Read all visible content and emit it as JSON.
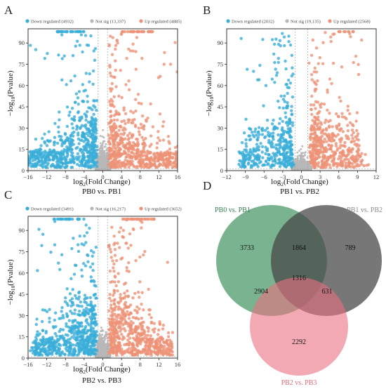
{
  "colors": {
    "down": "#3aaed8",
    "ns": "#b8b8b8",
    "up": "#ee9277",
    "venn1": "#4e9a6a",
    "venn2": "#4a4a4a",
    "venn3": "#ea6f80",
    "label1": "#2e7d4f",
    "label2": "#8a8a8a",
    "label3": "#e06a7a"
  },
  "panels": [
    {
      "letter": "A",
      "legend": {
        "down": "Down regulated (4932)",
        "ns": "Not sig (13,337)",
        "up": "Up regulated (4885)"
      },
      "xlabel_main": "log",
      "xlabel_sub": "2",
      "xlabel_rest": "(Fold Change)",
      "ylabel_pre": "−log",
      "ylabel_sub": "10",
      "ylabel_rest": "(Pvalue)",
      "comparison": "PB0 vs. PB1",
      "xticks": [
        "−16",
        "−12",
        "−8",
        "−4",
        "0",
        "4",
        "8",
        "12",
        "16"
      ],
      "yticks": [
        "0",
        "15",
        "30",
        "45",
        "60",
        "75",
        "90"
      ]
    },
    {
      "letter": "B",
      "legend": {
        "down": "Down regulated (2032)",
        "ns": "Not sig (19,135)",
        "up": "Up regulated (2568)"
      },
      "xlabel_main": "log",
      "xlabel_sub": "2",
      "xlabel_rest": "(Fold Change)",
      "ylabel_pre": "−log",
      "ylabel_sub": "10",
      "ylabel_rest": "(Pvalue)",
      "comparison": "PB1 vs. PB2",
      "xticks": [
        "−12",
        "−9",
        "−6",
        "−3",
        "0",
        "3",
        "6",
        "9",
        "12"
      ],
      "yticks": [
        "0",
        "15",
        "30",
        "45",
        "60",
        "75",
        "90"
      ]
    },
    {
      "letter": "C",
      "legend": {
        "down": "Down regulated (3491)",
        "ns": "Not sig (16,217)",
        "up": "Up regulated (3652)"
      },
      "xlabel_main": "log",
      "xlabel_sub": "2",
      "xlabel_rest": "(Fold Change)",
      "ylabel_pre": "−log",
      "ylabel_sub": "10",
      "ylabel_rest": "(Pvalue)",
      "comparison": "PB2 vs. PB3",
      "xticks": [
        "−16",
        "−12",
        "−8",
        "−4",
        "0",
        "4",
        "8",
        "12",
        "16"
      ],
      "yticks": [
        "0",
        "15",
        "30",
        "45",
        "60",
        "75",
        "90"
      ]
    }
  ],
  "venn": {
    "letter": "D",
    "sets": [
      "PB0 vs. PB1",
      "PB1 vs. PB2",
      "PB2 vs. PB3"
    ],
    "regions": {
      "only1": "3733",
      "only2": "789",
      "only3": "2292",
      "s12": "1864",
      "s13": "2904",
      "s23": "631",
      "s123": "1316"
    }
  },
  "chart_data": [
    {
      "type": "scatter",
      "title": "",
      "xlabel": "log2(Fold Change)",
      "ylabel": "−log10(Pvalue)",
      "xlim": [
        -16,
        16
      ],
      "ylim": [
        0,
        100
      ],
      "grid": false,
      "legend": "top",
      "series": [
        {
          "name": "Down regulated (4932)",
          "count": 4932
        },
        {
          "name": "Not sig (13,337)",
          "count": 13337
        },
        {
          "name": "Up regulated (4885)",
          "count": 4885
        }
      ],
      "caption": "PB0 vs. PB1"
    },
    {
      "type": "scatter",
      "title": "",
      "xlabel": "log2(Fold Change)",
      "ylabel": "−log10(Pvalue)",
      "xlim": [
        -12,
        12
      ],
      "ylim": [
        0,
        100
      ],
      "grid": false,
      "legend": "top",
      "series": [
        {
          "name": "Down regulated (2032)",
          "count": 2032
        },
        {
          "name": "Not sig (19,135)",
          "count": 19135
        },
        {
          "name": "Up regulated (2568)",
          "count": 2568
        }
      ],
      "caption": "PB1 vs. PB2"
    },
    {
      "type": "scatter",
      "title": "",
      "xlabel": "log2(Fold Change)",
      "ylabel": "−log10(Pvalue)",
      "xlim": [
        -16,
        16
      ],
      "ylim": [
        0,
        100
      ],
      "grid": false,
      "legend": "top",
      "series": [
        {
          "name": "Down regulated (3491)",
          "count": 3491
        },
        {
          "name": "Not sig (16,217)",
          "count": 16217
        },
        {
          "name": "Up regulated (3652)",
          "count": 3652
        }
      ],
      "caption": "PB2 vs. PB3"
    },
    {
      "type": "venn",
      "sets": [
        "PB0 vs. PB1",
        "PB1 vs. PB2",
        "PB2 vs. PB3"
      ],
      "only_PB0vsPB1": 3733,
      "only_PB1vsPB2": 789,
      "only_PB2vsPB3": 2292,
      "PB0vsPB1_and_PB1vsPB2": 1864,
      "PB0vsPB1_and_PB2vsPB3": 2904,
      "PB1vsPB2_and_PB2vsPB3": 631,
      "all_three": 1316
    }
  ]
}
